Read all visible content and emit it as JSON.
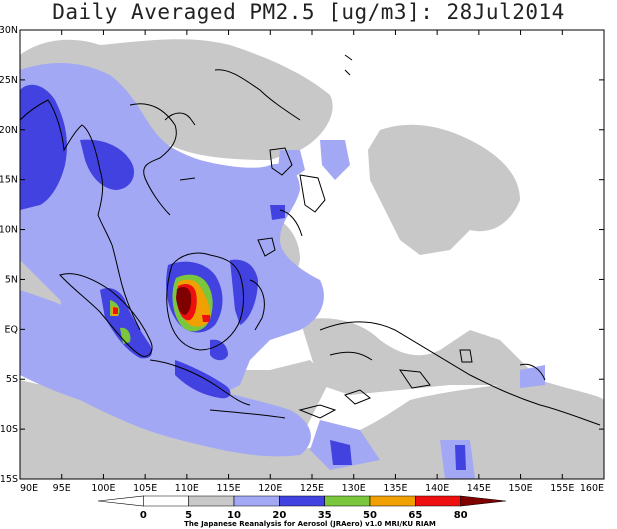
{
  "title": "Daily Averaged PM2.5 [ug/m3]: 28Jul2014",
  "lat_labels": [
    "30N",
    "25N",
    "20N",
    "15N",
    "10N",
    "5N",
    "EQ",
    "5S",
    "10S",
    "15S"
  ],
  "lon_labels": [
    "90E",
    "95E",
    "100E",
    "105E",
    "110E",
    "115E",
    "120E",
    "125E",
    "130E",
    "135E",
    "140E",
    "145E",
    "150E",
    "155E",
    "160E"
  ],
  "colorbar": {
    "labels": [
      "0",
      "5",
      "10",
      "20",
      "35",
      "50",
      "65",
      "80"
    ],
    "colors": [
      "#ffffff",
      "#ffffff",
      "#c8c8c8",
      "#a3a8f5",
      "#4242e0",
      "#7ac63c",
      "#f0a000",
      "#ee1010",
      "#800000"
    ]
  },
  "credit": "The Japanese Reanalysis for Aerosol (JRAero) v1.0 MRI/KU RIAM"
}
